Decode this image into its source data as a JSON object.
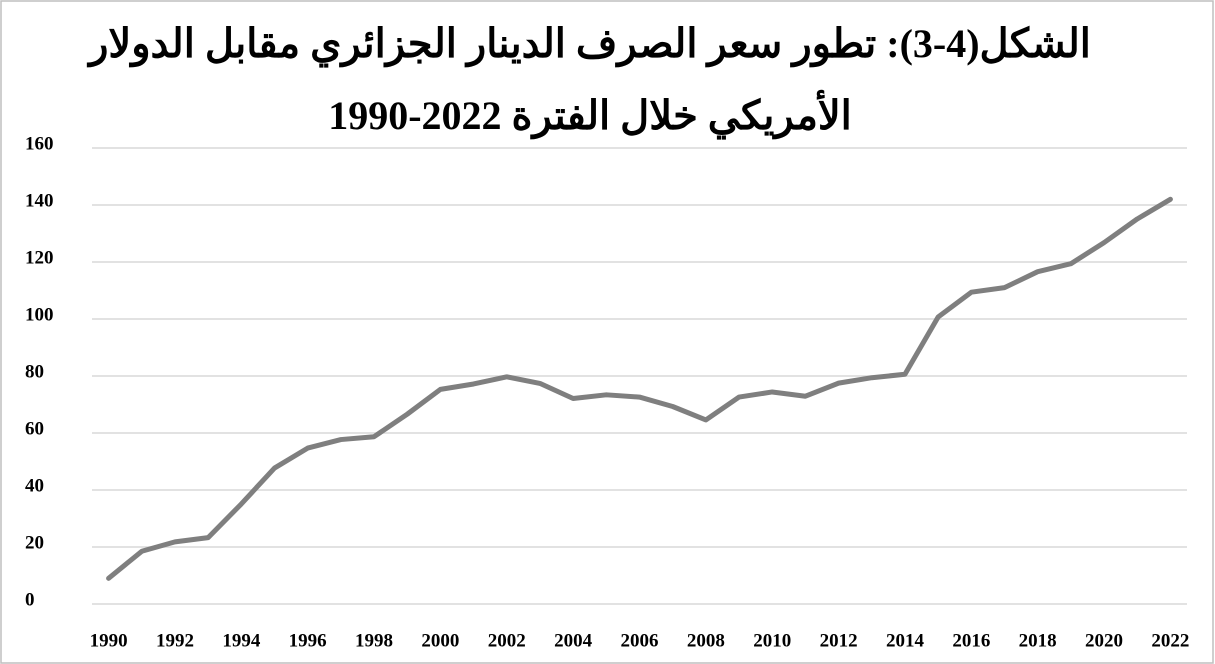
{
  "chart_data": {
    "type": "line",
    "title": [
      "الشكل(4-3): تطور سعر الصرف الدينار الجزائري مقابل الدولار",
      "الأمريكي خلال الفترة 2022-1990"
    ],
    "x": [
      1990,
      1991,
      1992,
      1993,
      1994,
      1995,
      1996,
      1997,
      1998,
      1999,
      2000,
      2001,
      2002,
      2003,
      2004,
      2005,
      2006,
      2007,
      2008,
      2009,
      2010,
      2011,
      2012,
      2013,
      2014,
      2015,
      2016,
      2017,
      2018,
      2019,
      2020,
      2021,
      2022
    ],
    "series": [
      {
        "color": "#7f7f7f",
        "values": [
          9.0,
          18.5,
          21.8,
          23.3,
          35.1,
          47.7,
          54.7,
          57.7,
          58.7,
          66.6,
          75.3,
          77.2,
          79.7,
          77.4,
          72.1,
          73.4,
          72.6,
          69.3,
          64.6,
          72.6,
          74.4,
          72.9,
          77.5,
          79.4,
          80.6,
          100.7,
          109.4,
          111.0,
          116.6,
          119.4,
          126.8,
          135.1,
          142.0
        ]
      }
    ],
    "xlim": [
      1989.5,
      2022.5
    ],
    "xticks": [
      1990,
      1992,
      1994,
      1996,
      1998,
      2000,
      2002,
      2004,
      2006,
      2008,
      2010,
      2012,
      2014,
      2016,
      2018,
      2020,
      2022
    ],
    "ylim": [
      0,
      160
    ],
    "yticks": [
      0,
      20,
      40,
      60,
      80,
      100,
      120,
      140,
      160
    ],
    "grid": true
  }
}
